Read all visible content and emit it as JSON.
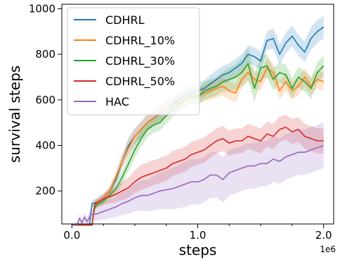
{
  "chart_data": {
    "type": "line",
    "xlabel": "steps",
    "ylabel": "survival steps",
    "x_offset_text": "1e6",
    "xlim": [
      -0.08,
      2.08
    ],
    "ylim": [
      55,
      1020
    ],
    "x_ticks": [
      0.0,
      1.0,
      2.0
    ],
    "x_tick_labels": [
      "0.0",
      "1.0",
      "2.0"
    ],
    "x_minor_ticks": [
      0.25,
      0.5,
      0.75,
      1.25,
      1.5,
      1.75
    ],
    "y_ticks": [
      200,
      400,
      600,
      800,
      1000
    ],
    "y_tick_labels": [
      "200",
      "400",
      "600",
      "800",
      "1000"
    ],
    "grid": false,
    "legend_position": "top-left",
    "series": [
      {
        "name": "CDHRL",
        "color": "#1f77b4",
        "x": [
          0.0,
          0.1,
          0.14,
          0.16,
          0.2,
          0.25,
          0.3,
          0.35,
          0.4,
          0.45,
          0.5,
          0.55,
          0.6,
          0.65,
          0.7,
          0.75,
          0.8,
          0.85,
          0.9,
          0.95,
          1.0,
          1.05,
          1.1,
          1.15,
          1.2,
          1.25,
          1.3,
          1.35,
          1.4,
          1.45,
          1.5,
          1.55,
          1.6,
          1.65,
          1.7,
          1.75,
          1.8,
          1.85,
          1.9,
          1.95,
          2.0
        ],
        "y": [
          50,
          50,
          50,
          145,
          150,
          165,
          200,
          250,
          330,
          400,
          440,
          470,
          500,
          520,
          540,
          560,
          580,
          600,
          620,
          630,
          640,
          650,
          670,
          690,
          710,
          720,
          740,
          760,
          800,
          790,
          770,
          860,
          870,
          800,
          850,
          880,
          840,
          810,
          870,
          900,
          920
        ],
        "band": [
          0,
          0,
          0,
          15,
          15,
          18,
          20,
          25,
          30,
          35,
          35,
          35,
          35,
          35,
          35,
          35,
          35,
          35,
          35,
          35,
          35,
          35,
          40,
          40,
          40,
          40,
          40,
          40,
          40,
          40,
          40,
          40,
          45,
          45,
          45,
          45,
          45,
          45,
          50,
          50,
          50
        ]
      },
      {
        "name": "CDHRL_10%",
        "color": "#ff7f0e",
        "x": [
          0.0,
          0.12,
          0.16,
          0.18,
          0.2,
          0.25,
          0.3,
          0.35,
          0.4,
          0.45,
          0.5,
          0.55,
          0.6,
          0.65,
          0.7,
          0.75,
          0.8,
          0.85,
          0.9,
          0.95,
          1.0,
          1.05,
          1.1,
          1.15,
          1.2,
          1.25,
          1.3,
          1.35,
          1.4,
          1.45,
          1.5,
          1.55,
          1.6,
          1.65,
          1.7,
          1.75,
          1.8,
          1.85,
          1.9,
          1.95,
          2.0
        ],
        "y": [
          50,
          50,
          50,
          130,
          145,
          165,
          200,
          260,
          330,
          390,
          440,
          470,
          500,
          520,
          545,
          560,
          575,
          590,
          600,
          610,
          620,
          630,
          640,
          650,
          660,
          640,
          630,
          690,
          720,
          690,
          680,
          740,
          720,
          640,
          680,
          640,
          660,
          700,
          660,
          690,
          680
        ],
        "band": [
          0,
          0,
          0,
          15,
          15,
          18,
          20,
          25,
          30,
          35,
          35,
          35,
          35,
          35,
          35,
          35,
          35,
          35,
          35,
          35,
          35,
          35,
          40,
          40,
          40,
          40,
          40,
          40,
          40,
          40,
          40,
          40,
          40,
          40,
          40,
          40,
          40,
          40,
          40,
          40,
          40
        ]
      },
      {
        "name": "CDHRL_30%",
        "color": "#2ca02c",
        "x": [
          0.0,
          0.12,
          0.16,
          0.18,
          0.2,
          0.25,
          0.3,
          0.35,
          0.4,
          0.45,
          0.5,
          0.55,
          0.6,
          0.65,
          0.7,
          0.75,
          0.8,
          0.85,
          0.9,
          0.95,
          1.0,
          1.05,
          1.1,
          1.15,
          1.2,
          1.25,
          1.3,
          1.35,
          1.4,
          1.45,
          1.5,
          1.55,
          1.6,
          1.65,
          1.7,
          1.75,
          1.8,
          1.85,
          1.9,
          1.95,
          2.0
        ],
        "y": [
          50,
          50,
          50,
          125,
          140,
          155,
          180,
          210,
          260,
          320,
          380,
          430,
          470,
          490,
          500,
          530,
          560,
          580,
          600,
          620,
          610,
          640,
          650,
          660,
          680,
          690,
          700,
          720,
          760,
          650,
          740,
          750,
          690,
          720,
          710,
          650,
          700,
          680,
          650,
          720,
          750
        ],
        "band": [
          0,
          0,
          0,
          15,
          15,
          18,
          20,
          25,
          30,
          35,
          35,
          35,
          35,
          35,
          35,
          35,
          35,
          35,
          35,
          35,
          35,
          40,
          40,
          40,
          45,
          50,
          55,
          60,
          70,
          60,
          55,
          50,
          50,
          45,
          45,
          45,
          45,
          45,
          45,
          45,
          45
        ]
      },
      {
        "name": "CDHRL_50%",
        "color": "#d62728",
        "x": [
          0.0,
          0.12,
          0.16,
          0.18,
          0.2,
          0.25,
          0.3,
          0.35,
          0.4,
          0.45,
          0.5,
          0.55,
          0.6,
          0.65,
          0.7,
          0.75,
          0.8,
          0.85,
          0.9,
          0.95,
          1.0,
          1.05,
          1.1,
          1.15,
          1.2,
          1.25,
          1.3,
          1.35,
          1.4,
          1.45,
          1.5,
          1.55,
          1.6,
          1.65,
          1.7,
          1.75,
          1.8,
          1.85,
          1.9,
          1.95,
          2.0
        ],
        "y": [
          50,
          50,
          50,
          140,
          150,
          165,
          175,
          185,
          200,
          215,
          240,
          260,
          270,
          280,
          290,
          300,
          320,
          330,
          340,
          360,
          370,
          380,
          400,
          420,
          430,
          410,
          420,
          420,
          440,
          430,
          420,
          450,
          440,
          470,
          480,
          460,
          470,
          440,
          430,
          420,
          420
        ],
        "band": [
          0,
          0,
          0,
          20,
          20,
          25,
          30,
          35,
          40,
          45,
          50,
          55,
          55,
          55,
          55,
          55,
          55,
          55,
          55,
          55,
          55,
          55,
          55,
          55,
          55,
          55,
          55,
          55,
          55,
          55,
          55,
          55,
          55,
          55,
          55,
          55,
          55,
          55,
          55,
          55,
          55
        ]
      },
      {
        "name": "HAC",
        "color": "#9467bd",
        "x": [
          0.0,
          0.04,
          0.06,
          0.08,
          0.1,
          0.12,
          0.15,
          0.2,
          0.25,
          0.3,
          0.35,
          0.4,
          0.45,
          0.5,
          0.55,
          0.6,
          0.65,
          0.7,
          0.75,
          0.8,
          0.85,
          0.9,
          0.95,
          1.0,
          1.05,
          1.1,
          1.15,
          1.2,
          1.25,
          1.3,
          1.35,
          1.4,
          1.45,
          1.5,
          1.55,
          1.6,
          1.65,
          1.7,
          1.75,
          1.8,
          1.85,
          1.9,
          1.95,
          2.0
        ],
        "y": [
          50,
          50,
          80,
          60,
          85,
          65,
          95,
          100,
          110,
          120,
          130,
          145,
          155,
          170,
          180,
          180,
          190,
          200,
          205,
          210,
          220,
          230,
          240,
          240,
          250,
          270,
          270,
          250,
          280,
          290,
          300,
          310,
          310,
          320,
          320,
          340,
          330,
          350,
          360,
          370,
          370,
          380,
          390,
          400
        ],
        "band": [
          0,
          0,
          20,
          15,
          20,
          20,
          25,
          30,
          35,
          40,
          45,
          50,
          55,
          60,
          65,
          70,
          75,
          80,
          85,
          90,
          95,
          100,
          100,
          100,
          100,
          100,
          100,
          100,
          100,
          100,
          100,
          100,
          100,
          100,
          100,
          100,
          100,
          100,
          100,
          100,
          100,
          100,
          100,
          100
        ]
      }
    ]
  }
}
